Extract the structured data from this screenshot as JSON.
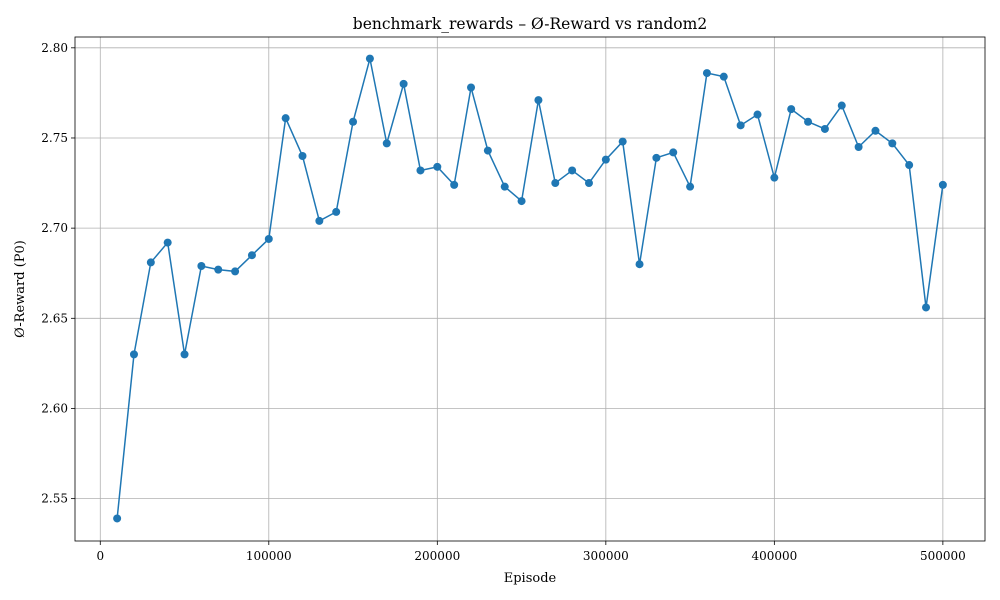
{
  "chart_data": {
    "type": "line",
    "title": "benchmark_rewards – Ø-Reward vs random2",
    "xlabel": "Episode",
    "ylabel": "Ø-Reward (P0)",
    "xlim": [
      -15000,
      525000
    ],
    "ylim": [
      2.5265,
      2.806
    ],
    "xticks": [
      0,
      100000,
      200000,
      300000,
      400000,
      500000
    ],
    "xtick_labels": [
      "0",
      "100000",
      "200000",
      "300000",
      "400000",
      "500000"
    ],
    "yticks": [
      2.55,
      2.6,
      2.65,
      2.7,
      2.75,
      2.8
    ],
    "ytick_labels": [
      "2.55",
      "2.60",
      "2.65",
      "2.70",
      "2.75",
      "2.80"
    ],
    "grid": true,
    "series": [
      {
        "color": "#1f77b4",
        "marker": "circle",
        "x": [
          10000,
          20000,
          30000,
          40000,
          50000,
          60000,
          70000,
          80000,
          90000,
          100000,
          110000,
          120000,
          130000,
          140000,
          150000,
          160000,
          170000,
          180000,
          190000,
          200000,
          210000,
          220000,
          230000,
          240000,
          250000,
          260000,
          270000,
          280000,
          290000,
          300000,
          310000,
          320000,
          330000,
          340000,
          350000,
          360000,
          370000,
          380000,
          390000,
          400000,
          410000,
          420000,
          430000,
          440000,
          450000,
          460000,
          470000,
          480000,
          490000,
          500000
        ],
        "y": [
          2.539,
          2.63,
          2.681,
          2.692,
          2.63,
          2.679,
          2.677,
          2.676,
          2.685,
          2.694,
          2.761,
          2.74,
          2.704,
          2.709,
          2.759,
          2.794,
          2.747,
          2.78,
          2.732,
          2.734,
          2.724,
          2.778,
          2.743,
          2.723,
          2.715,
          2.771,
          2.725,
          2.732,
          2.725,
          2.738,
          2.748,
          2.68,
          2.739,
          2.742,
          2.723,
          2.786,
          2.784,
          2.757,
          2.763,
          2.728,
          2.766,
          2.759,
          2.755,
          2.768,
          2.745,
          2.754,
          2.747,
          2.735,
          2.656,
          2.724
        ]
      }
    ]
  }
}
